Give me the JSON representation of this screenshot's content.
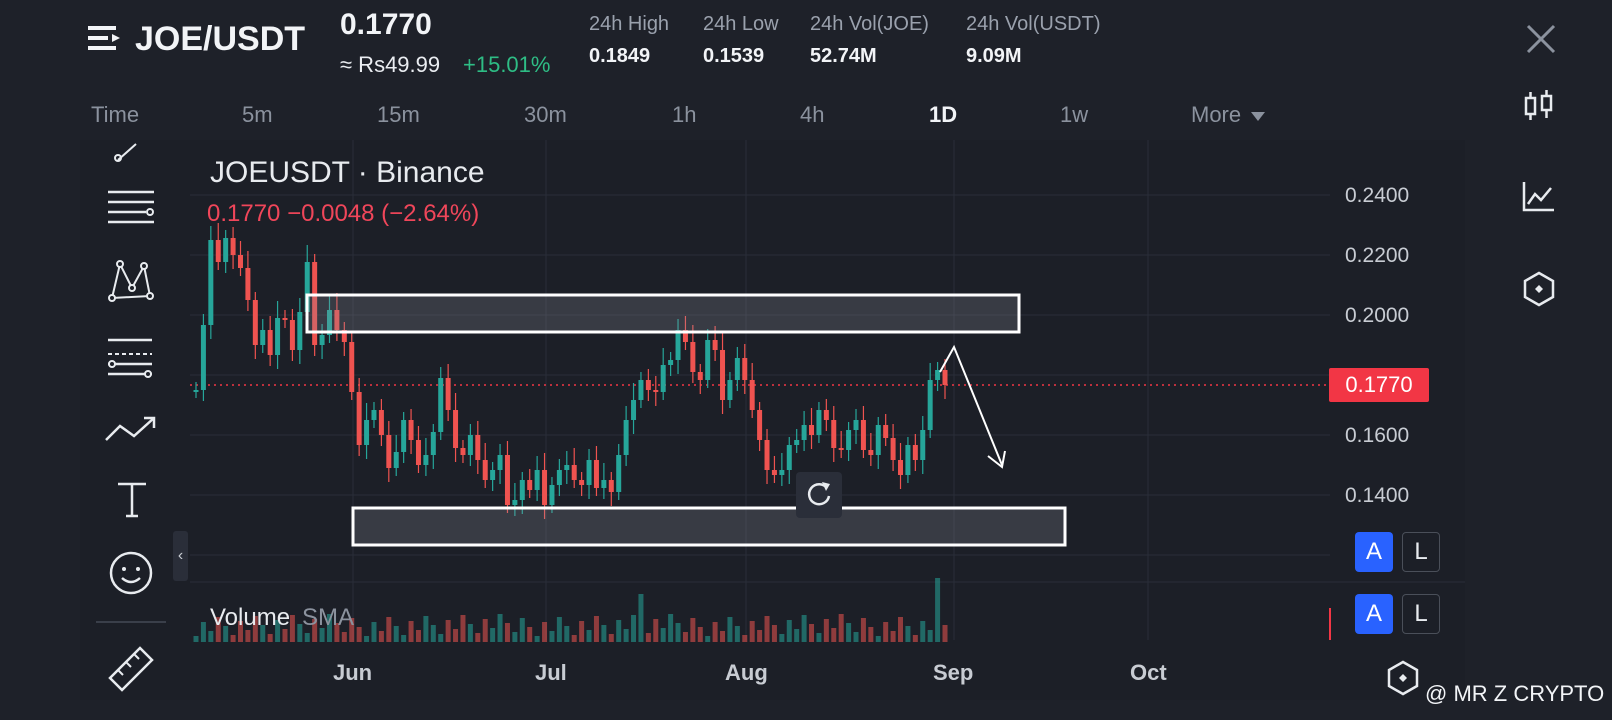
{
  "header": {
    "pair": "JOE/USDT",
    "menu_icon": "list-menu-icon",
    "price": "0.1770",
    "price_local": "≈ Rs49.99",
    "change_pct": "+15.01%",
    "stats": [
      {
        "label": "24h High",
        "value": "0.1849"
      },
      {
        "label": "24h Low",
        "value": "0.1539"
      },
      {
        "label": "24h Vol(JOE)",
        "value": "52.74M"
      },
      {
        "label": "24h Vol(USDT)",
        "value": "9.09M"
      }
    ],
    "close_icon": "close-icon"
  },
  "timeframes": {
    "items": [
      "Time",
      "5m",
      "15m",
      "30m",
      "1h",
      "4h",
      "1D",
      "1w",
      "More"
    ],
    "active": "1D"
  },
  "right_toolbar": [
    "candlestick-icon",
    "line-chart-icon",
    "settings-hex-icon"
  ],
  "left_toolbar": [
    "pencil-icon",
    "horizontal-lines-icon",
    "pattern-icon",
    "fib-icon",
    "trend-line-icon",
    "text-icon",
    "emoji-icon",
    "ruler-icon"
  ],
  "chart": {
    "symbol_title": "JOEUSDT · Binance",
    "change_line": "0.1770  −0.0048 (−2.64%)",
    "last_price_tag": "0.1770",
    "volume_label": "Volume",
    "volume_sma": "SMA",
    "auto_btn": "A",
    "log_btn": "L",
    "collapse_glyph": "‹"
  },
  "watermark": "@ MR Z CRYPTO",
  "chart_data": {
    "type": "candlestick",
    "title": "JOEUSDT · Binance",
    "x_ticks": [
      "Jun",
      "Jul",
      "Aug",
      "Sep",
      "Oct"
    ],
    "y_ticks": [
      "0.2400",
      "0.2200",
      "0.2000",
      "0.1600",
      "0.1400"
    ],
    "ylim": [
      0.12,
      0.25
    ],
    "last_price": 0.177,
    "colors": {
      "up": "#26a69a",
      "down": "#ef5350",
      "tag": "#f23645"
    },
    "annotations": [
      {
        "type": "rectangle",
        "label": "resistance zone",
        "y_range": [
          0.195,
          0.207
        ]
      },
      {
        "type": "rectangle",
        "label": "support zone",
        "y_range": [
          0.1325,
          0.1365
        ]
      },
      {
        "type": "arrow",
        "label": "projected move down"
      }
    ]
  }
}
